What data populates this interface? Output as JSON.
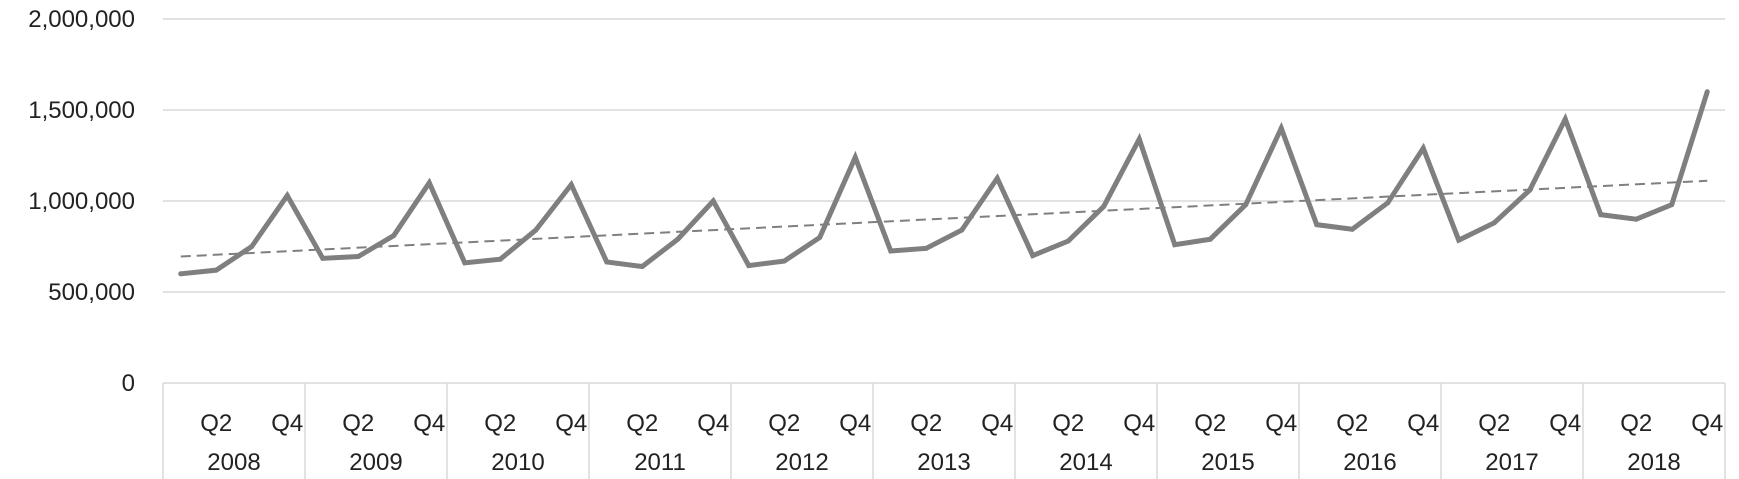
{
  "chart_data": {
    "type": "line",
    "title": "",
    "xlabel": "",
    "ylabel": "",
    "ylim": [
      0,
      2000000
    ],
    "y_ticks": [
      0,
      500000,
      1000000,
      1500000,
      2000000
    ],
    "y_tick_labels": [
      "0",
      "500,000",
      "1,000,000",
      "1,500,000",
      "2,000,000"
    ],
    "grid": "horizontal",
    "years": [
      "2008",
      "2009",
      "2010",
      "2011",
      "2012",
      "2013",
      "2014",
      "2015",
      "2016",
      "2017",
      "2018"
    ],
    "quarter_tick_labels": [
      "Q2",
      "Q4"
    ],
    "series": [
      {
        "values": [
          600000,
          620000,
          750000,
          1030000,
          685000,
          695000,
          810000,
          1100000,
          660000,
          680000,
          840000,
          1090000,
          665000,
          640000,
          790000,
          1000000,
          645000,
          670000,
          800000,
          1240000,
          725000,
          740000,
          840000,
          1125000,
          700000,
          780000,
          970000,
          1340000,
          760000,
          790000,
          980000,
          1400000,
          870000,
          845000,
          990000,
          1290000,
          785000,
          880000,
          1060000,
          1450000,
          925000,
          900000,
          980000,
          1600000
        ],
        "color": "#7f7f7f"
      }
    ],
    "trendline": {
      "type": "linear",
      "style": "dashed",
      "color": "#7f7f7f"
    }
  }
}
